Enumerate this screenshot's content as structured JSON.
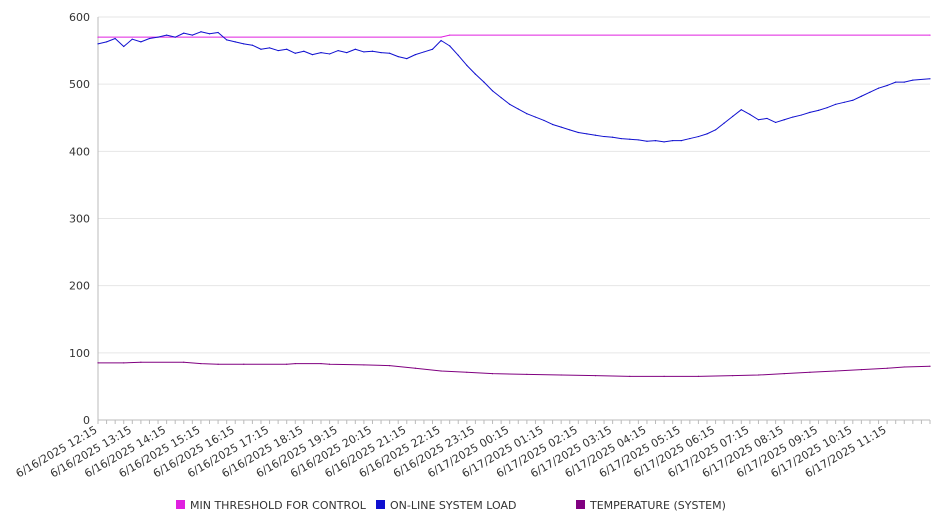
{
  "chart_data": {
    "type": "line",
    "title": "",
    "xlabel": "",
    "ylabel": "",
    "ylim": [
      0,
      600
    ],
    "yticks": [
      0,
      100,
      200,
      300,
      400,
      500,
      600
    ],
    "x_start": "6/16/2025 12:15",
    "x_end": "6/17/2025 12:30",
    "x_tick_labels": [
      "6/16/2025 12:15",
      "6/16/2025 13:15",
      "6/16/2025 14:15",
      "6/16/2025 15:15",
      "6/16/2025 16:15",
      "6/16/2025 17:15",
      "6/16/2025 18:15",
      "6/16/2025 19:15",
      "6/16/2025 20:15",
      "6/16/2025 21:15",
      "6/16/2025 22:15",
      "6/16/2025 23:15",
      "6/17/2025 00:15",
      "6/17/2025 01:15",
      "6/17/2025 02:15",
      "6/17/2025 03:15",
      "6/17/2025 04:15",
      "6/17/2025 05:15",
      "6/17/2025 06:15",
      "6/17/2025 07:15",
      "6/17/2025 08:15",
      "6/17/2025 09:15",
      "6/17/2025 10:15",
      "6/17/2025 11:15"
    ],
    "grid": true,
    "legend_position": "bottom",
    "series": [
      {
        "name": "MIN THRESHOLD FOR CONTROL",
        "color": "#e020e0",
        "points": [
          [
            "6/16/2025 12:15",
            570
          ],
          [
            "6/16/2025 22:15",
            570
          ],
          [
            "6/16/2025 22:30",
            573
          ],
          [
            "6/17/2025 12:30",
            573
          ]
        ]
      },
      {
        "name": "ON-LINE SYSTEM LOAD",
        "color": "#1010d0",
        "points": [
          [
            "6/16/2025 12:15",
            560
          ],
          [
            "6/16/2025 12:30",
            563
          ],
          [
            "6/16/2025 12:45",
            568
          ],
          [
            "6/16/2025 13:00",
            556
          ],
          [
            "6/16/2025 13:15",
            567
          ],
          [
            "6/16/2025 13:30",
            563
          ],
          [
            "6/16/2025 13:45",
            568
          ],
          [
            "6/16/2025 14:00",
            570
          ],
          [
            "6/16/2025 14:15",
            573
          ],
          [
            "6/16/2025 14:30",
            570
          ],
          [
            "6/16/2025 14:45",
            576
          ],
          [
            "6/16/2025 15:00",
            573
          ],
          [
            "6/16/2025 15:15",
            578
          ],
          [
            "6/16/2025 15:30",
            575
          ],
          [
            "6/16/2025 15:45",
            577
          ],
          [
            "6/16/2025 16:00",
            566
          ],
          [
            "6/16/2025 16:15",
            563
          ],
          [
            "6/16/2025 16:30",
            560
          ],
          [
            "6/16/2025 16:45",
            558
          ],
          [
            "6/16/2025 17:00",
            552
          ],
          [
            "6/16/2025 17:15",
            554
          ],
          [
            "6/16/2025 17:30",
            550
          ],
          [
            "6/16/2025 17:45",
            552
          ],
          [
            "6/16/2025 18:00",
            546
          ],
          [
            "6/16/2025 18:15",
            549
          ],
          [
            "6/16/2025 18:30",
            544
          ],
          [
            "6/16/2025 18:45",
            547
          ],
          [
            "6/16/2025 19:00",
            545
          ],
          [
            "6/16/2025 19:15",
            550
          ],
          [
            "6/16/2025 19:30",
            547
          ],
          [
            "6/16/2025 19:45",
            552
          ],
          [
            "6/16/2025 20:00",
            548
          ],
          [
            "6/16/2025 20:15",
            549
          ],
          [
            "6/16/2025 20:30",
            547
          ],
          [
            "6/16/2025 20:45",
            546
          ],
          [
            "6/16/2025 21:00",
            541
          ],
          [
            "6/16/2025 21:15",
            538
          ],
          [
            "6/16/2025 21:30",
            544
          ],
          [
            "6/16/2025 21:45",
            548
          ],
          [
            "6/16/2025 22:00",
            552
          ],
          [
            "6/16/2025 22:15",
            565
          ],
          [
            "6/16/2025 22:30",
            557
          ],
          [
            "6/16/2025 22:45",
            543
          ],
          [
            "6/16/2025 23:00",
            528
          ],
          [
            "6/16/2025 23:15",
            515
          ],
          [
            "6/16/2025 23:30",
            503
          ],
          [
            "6/16/2025 23:45",
            490
          ],
          [
            "6/17/2025 00:00",
            480
          ],
          [
            "6/17/2025 00:15",
            470
          ],
          [
            "6/17/2025 00:30",
            463
          ],
          [
            "6/17/2025 00:45",
            456
          ],
          [
            "6/17/2025 01:00",
            451
          ],
          [
            "6/17/2025 01:15",
            446
          ],
          [
            "6/17/2025 01:30",
            440
          ],
          [
            "6/17/2025 01:45",
            436
          ],
          [
            "6/17/2025 02:00",
            432
          ],
          [
            "6/17/2025 02:15",
            428
          ],
          [
            "6/17/2025 02:30",
            426
          ],
          [
            "6/17/2025 02:45",
            424
          ],
          [
            "6/17/2025 03:00",
            422
          ],
          [
            "6/17/2025 03:15",
            421
          ],
          [
            "6/17/2025 03:30",
            419
          ],
          [
            "6/17/2025 03:45",
            418
          ],
          [
            "6/17/2025 04:00",
            417
          ],
          [
            "6/17/2025 04:15",
            415
          ],
          [
            "6/17/2025 04:30",
            416
          ],
          [
            "6/17/2025 04:45",
            414
          ],
          [
            "6/17/2025 05:00",
            416
          ],
          [
            "6/17/2025 05:15",
            416
          ],
          [
            "6/17/2025 05:30",
            419
          ],
          [
            "6/17/2025 05:45",
            422
          ],
          [
            "6/17/2025 06:00",
            426
          ],
          [
            "6/17/2025 06:15",
            432
          ],
          [
            "6/17/2025 06:30",
            442
          ],
          [
            "6/17/2025 06:45",
            452
          ],
          [
            "6/17/2025 07:00",
            462
          ],
          [
            "6/17/2025 07:15",
            455
          ],
          [
            "6/17/2025 07:30",
            447
          ],
          [
            "6/17/2025 07:45",
            449
          ],
          [
            "6/17/2025 08:00",
            443
          ],
          [
            "6/17/2025 08:15",
            447
          ],
          [
            "6/17/2025 08:30",
            451
          ],
          [
            "6/17/2025 08:45",
            454
          ],
          [
            "6/17/2025 09:00",
            458
          ],
          [
            "6/17/2025 09:15",
            461
          ],
          [
            "6/17/2025 09:30",
            465
          ],
          [
            "6/17/2025 09:45",
            470
          ],
          [
            "6/17/2025 10:00",
            473
          ],
          [
            "6/17/2025 10:15",
            476
          ],
          [
            "6/17/2025 10:30",
            482
          ],
          [
            "6/17/2025 10:45",
            488
          ],
          [
            "6/17/2025 11:00",
            494
          ],
          [
            "6/17/2025 11:15",
            498
          ],
          [
            "6/17/2025 11:30",
            503
          ],
          [
            "6/17/2025 11:45",
            503
          ],
          [
            "6/17/2025 12:00",
            506
          ],
          [
            "6/17/2025 12:30",
            508
          ]
        ]
      },
      {
        "name": "TEMPERATURE (SYSTEM)",
        "color": "#800080",
        "points": [
          [
            "6/16/2025 12:15",
            85
          ],
          [
            "6/16/2025 13:00",
            85
          ],
          [
            "6/16/2025 13:30",
            86
          ],
          [
            "6/16/2025 14:45",
            86
          ],
          [
            "6/16/2025 15:15",
            84
          ],
          [
            "6/16/2025 15:45",
            83
          ],
          [
            "6/16/2025 16:30",
            83
          ],
          [
            "6/16/2025 17:45",
            83
          ],
          [
            "6/16/2025 18:00",
            84
          ],
          [
            "6/16/2025 18:45",
            84
          ],
          [
            "6/16/2025 19:00",
            83
          ],
          [
            "6/16/2025 20:00",
            82
          ],
          [
            "6/16/2025 20:45",
            81
          ],
          [
            "6/16/2025 21:30",
            77
          ],
          [
            "6/16/2025 22:15",
            73
          ],
          [
            "6/16/2025 23:00",
            71
          ],
          [
            "6/16/2025 23:45",
            69
          ],
          [
            "6/17/2025 00:45",
            68
          ],
          [
            "6/17/2025 01:45",
            67
          ],
          [
            "6/17/2025 02:45",
            66
          ],
          [
            "6/17/2025 03:45",
            65
          ],
          [
            "6/17/2025 04:45",
            65
          ],
          [
            "6/17/2025 05:45",
            65
          ],
          [
            "6/17/2025 06:45",
            66
          ],
          [
            "6/17/2025 07:30",
            67
          ],
          [
            "6/17/2025 08:15",
            69
          ],
          [
            "6/17/2025 09:00",
            71
          ],
          [
            "6/17/2025 09:45",
            73
          ],
          [
            "6/17/2025 10:30",
            75
          ],
          [
            "6/17/2025 11:15",
            77
          ],
          [
            "6/17/2025 11:45",
            79
          ],
          [
            "6/17/2025 12:30",
            80
          ]
        ]
      }
    ]
  }
}
